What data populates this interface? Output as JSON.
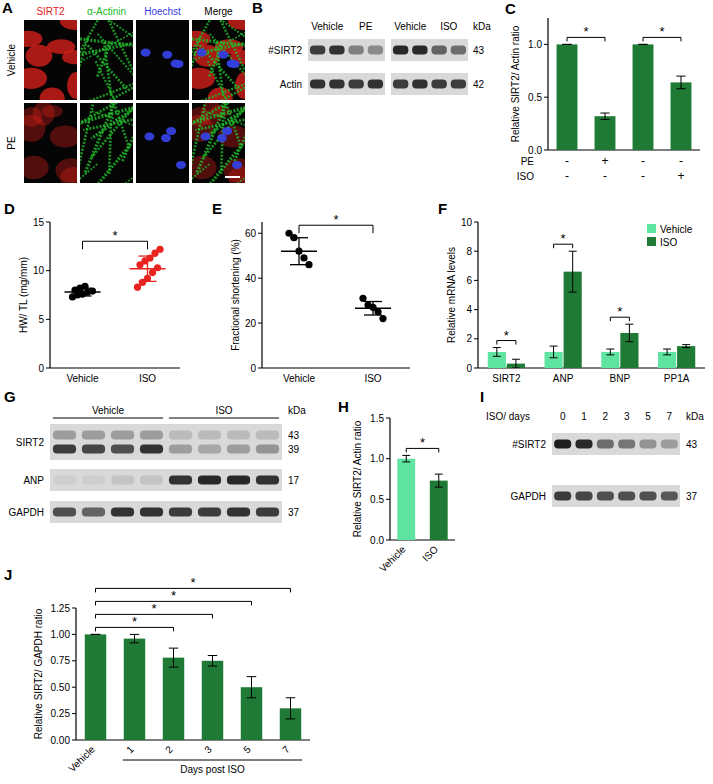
{
  "chart_data": [
    {
      "panel": "C",
      "type": "bar",
      "y_label": "Relative SIRT2/ Actin ratio",
      "categories": [
        null,
        null,
        null,
        null
      ],
      "values": [
        1.0,
        0.32,
        1.0,
        0.64
      ],
      "errors": [
        0,
        0.03,
        0,
        0.06
      ],
      "color": "#1e7a34",
      "ylim": [
        0,
        1.25
      ],
      "yticks": [
        {
          "value": 0,
          "label": "0.0"
        },
        0.5,
        {
          "value": 1,
          "label": "1.0"
        }
      ],
      "conditions": [
        {
          "name": "PE",
          "values": [
            "-",
            "+",
            "-",
            "-"
          ]
        },
        {
          "name": "ISO",
          "values": [
            "-",
            "-",
            "-",
            "+"
          ]
        }
      ],
      "significance": [
        {
          "pair": [
            0,
            1
          ],
          "text": "*"
        },
        {
          "pair": [
            2,
            3
          ],
          "text": "*"
        }
      ]
    },
    {
      "panel": "D",
      "type": "dot",
      "y_label": "HW/ TL (mg/mm)",
      "categories": [
        "Vehicle",
        "ISO"
      ],
      "colors": [
        "#000000",
        "#e8231f"
      ],
      "points": [
        [
          7.3,
          7.5,
          7.6,
          7.8,
          7.9,
          8.0,
          8.2,
          8.4
        ],
        [
          8.3,
          8.8,
          9.2,
          9.8,
          10.3,
          10.6,
          11.0,
          11.3,
          11.8,
          12.2
        ]
      ],
      "values": [
        7.8,
        10.2
      ],
      "errors": [
        0.4,
        1.3
      ],
      "ylim": [
        0,
        15
      ],
      "yticks": [
        0,
        5,
        10,
        15
      ],
      "significance": [
        {
          "pair": [
            0,
            1
          ],
          "text": "*"
        }
      ]
    },
    {
      "panel": "E",
      "type": "dot",
      "y_label": "Fractional shortening (%)",
      "categories": [
        "Vehicle",
        "ISO"
      ],
      "colors": [
        "#000000",
        "#000000"
      ],
      "points": [
        [
          60,
          58,
          52,
          49,
          46
        ],
        [
          31,
          28,
          27,
          25,
          22
        ]
      ],
      "values": [
        52,
        26.6
      ],
      "errors": [
        6,
        3
      ],
      "ylim": [
        0,
        65
      ],
      "yticks": [
        0,
        20,
        40,
        60
      ],
      "significance": [
        {
          "pair": [
            0,
            1
          ],
          "text": "*"
        }
      ]
    },
    {
      "panel": "F",
      "type": "bar",
      "y_label": "Relative mRNA levels",
      "categories": [
        "SIRT2",
        "ANP",
        "BNP",
        "PP1A"
      ],
      "series": [
        {
          "name": "Vehicle",
          "color": "#5fe3a1",
          "values": [
            1.1,
            1.1,
            1.1,
            1.1
          ],
          "errors": [
            0.3,
            0.4,
            0.2,
            0.2
          ]
        },
        {
          "name": "ISO",
          "color": "#1e7a34",
          "values": [
            0.3,
            6.6,
            2.4,
            1.5
          ],
          "errors": [
            0.3,
            1.4,
            0.6,
            0.1
          ]
        }
      ],
      "ylim": [
        0,
        10
      ],
      "yticks": [
        0,
        2,
        4,
        6,
        8,
        10
      ],
      "legend": "top-right",
      "significance": [
        {
          "category": 0,
          "text": "*"
        },
        {
          "category": 1,
          "text": "*"
        },
        {
          "category": 2,
          "text": "*"
        }
      ]
    },
    {
      "panel": "H",
      "type": "bar",
      "y_label": "Relative SIRT2/ Actin ratio",
      "categories": [
        "Vehicle",
        "ISO"
      ],
      "values": [
        1.0,
        0.73
      ],
      "errors": [
        0.04,
        0.08
      ],
      "colors": [
        "#5fe3a1",
        "#1e7a34"
      ],
      "ylim": [
        0,
        1.5
      ],
      "yticks": [
        {
          "value": 0,
          "label": "0.0"
        },
        0.5,
        {
          "value": 1,
          "label": "1.0"
        },
        1.5
      ],
      "significance": [
        {
          "pair": [
            0,
            1
          ],
          "text": "*"
        }
      ]
    },
    {
      "panel": "J",
      "type": "bar",
      "y_label": "Relative SIRT2/ GAPDH ratio",
      "categories": [
        "Vehicle",
        "1",
        "2",
        "3",
        "5",
        "7"
      ],
      "values": [
        1.0,
        0.96,
        0.78,
        0.75,
        0.5,
        0.3
      ],
      "errors": [
        0,
        0.04,
        0.09,
        0.05,
        0.1,
        0.1
      ],
      "color": "#1e7a34",
      "ylim": [
        0,
        1.25
      ],
      "yticks": [
        {
          "value": 0,
          "label": "0.00"
        },
        0.25,
        {
          "value": 0.5,
          "label": "0.50"
        },
        0.75,
        {
          "value": 1,
          "label": "1.00"
        },
        {
          "value": 1.25,
          "label": "1.25"
        }
      ],
      "group": {
        "label": "Days post ISO",
        "span": [
          1,
          5
        ]
      },
      "significance": [
        {
          "pair": [
            0,
            2
          ],
          "text": "*"
        },
        {
          "pair": [
            0,
            3
          ],
          "text": "*"
        },
        {
          "pair": [
            0,
            4
          ],
          "text": "*"
        },
        {
          "pair": [
            0,
            5
          ],
          "text": "*"
        }
      ]
    }
  ],
  "micrograph": {
    "panel": "A",
    "columns": [
      {
        "label": "SIRT2",
        "color": "#e0201b"
      },
      {
        "label": "α-Actinin",
        "color": "#22b82a"
      },
      {
        "label": "Hoechst",
        "color": "#3440e0"
      },
      {
        "label": "Merge",
        "color": "#000000"
      }
    ],
    "rows": [
      "Vehicle",
      "PE"
    ]
  },
  "blots": [
    {
      "panel": "B",
      "kda_label": "kDa",
      "groups": [
        {
          "label": "Vehicle",
          "lanes": 2
        },
        {
          "label": "PE",
          "lanes": 2
        },
        {
          "label": "Vehicle",
          "lanes": 2
        },
        {
          "label": "ISO",
          "lanes": 2
        }
      ],
      "rows": [
        {
          "label": "#SIRT2",
          "kda": [
            "43"
          ],
          "bands": [
            [
              0.8,
              0.85,
              0.45,
              0.4,
              0.9,
              0.9,
              0.6,
              0.55
            ]
          ]
        },
        {
          "label": "Actin",
          "kda": [
            "42"
          ],
          "bands": [
            [
              0.85,
              0.85,
              0.8,
              0.85,
              0.8,
              0.85,
              0.8,
              0.8
            ]
          ]
        }
      ]
    },
    {
      "panel": "G",
      "kda_label": "kDa",
      "groups": [
        {
          "label": "Vehicle",
          "lanes": 4
        },
        {
          "label": "ISO",
          "lanes": 4
        }
      ],
      "rows": [
        {
          "label": "SIRT2",
          "kda": [
            "43",
            "39"
          ],
          "bands": [
            [
              0.3,
              0.3,
              0.3,
              0.3,
              0.15,
              0.15,
              0.15,
              0.15
            ],
            [
              0.8,
              0.75,
              0.7,
              0.85,
              0.3,
              0.25,
              0.3,
              0.35
            ]
          ]
        },
        {
          "label": "ANP",
          "kda": [
            "17"
          ],
          "bands": [
            [
              0.05,
              0.05,
              0.1,
              0.1,
              0.85,
              0.9,
              0.9,
              0.85
            ]
          ]
        },
        {
          "label": "GAPDH",
          "kda": [
            "37"
          ],
          "bands": [
            [
              0.7,
              0.6,
              0.85,
              0.85,
              0.8,
              0.8,
              0.85,
              0.8
            ]
          ]
        }
      ]
    },
    {
      "panel": "I",
      "kda_label": "kDa",
      "lane_title": "ISO/ days",
      "lanes": [
        "0",
        "1",
        "2",
        "3",
        "5",
        "7"
      ],
      "rows": [
        {
          "label": "#SIRT2",
          "kda": [
            "43"
          ],
          "bands": [
            [
              0.95,
              0.9,
              0.55,
              0.5,
              0.35,
              0.3
            ]
          ]
        },
        {
          "label": "GAPDH",
          "kda": [
            "37"
          ],
          "bands": [
            [
              0.8,
              0.75,
              0.7,
              0.7,
              0.7,
              0.65
            ]
          ]
        }
      ]
    }
  ]
}
